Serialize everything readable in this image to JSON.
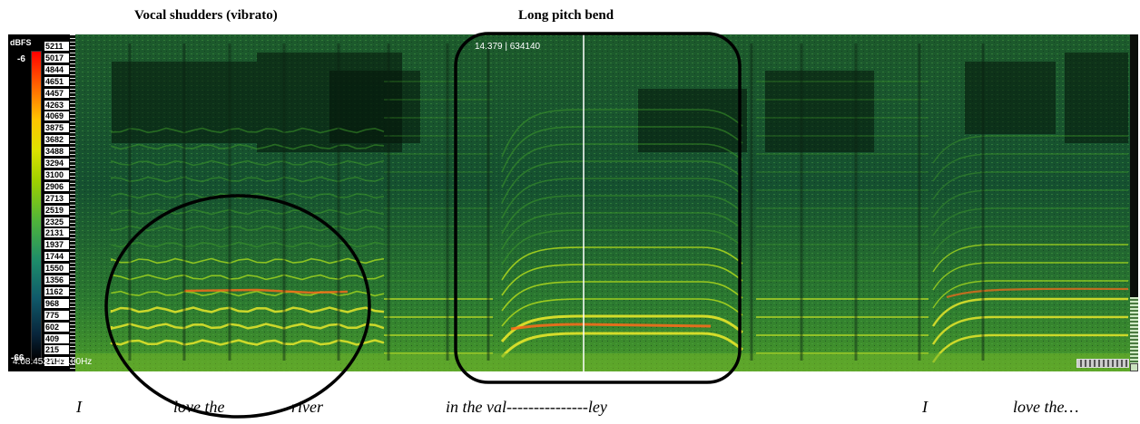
{
  "annotations": {
    "vibrato_title": "Vocal shudders (vibrato)",
    "bend_title": "Long pitch bend"
  },
  "level_meter": {
    "title": "dBFS",
    "max_label": "-6",
    "min_label": "-66"
  },
  "frequency_axis": {
    "labels": [
      "5211",
      "5017",
      "4844",
      "4651",
      "4457",
      "4263",
      "4069",
      "3875",
      "3682",
      "3488",
      "3294",
      "3100",
      "2906",
      "2713",
      "2519",
      "2325",
      "2131",
      "1937",
      "1744",
      "1550",
      "1356",
      "1162",
      "968",
      "775",
      "602",
      "409",
      "215",
      "21Hz"
    ]
  },
  "readouts": {
    "cursor": "14.379 | 634140",
    "position": "4:08.453 / 44100Hz"
  },
  "lyrics": {
    "w1": "I",
    "w2": "love the",
    "w3": "river",
    "w4": "in the val---------------ley",
    "w5": "I",
    "w6": "love the…"
  },
  "colors": {
    "background": "#0b1a0c",
    "spectrum_low": "#134a2a",
    "spectrum_mid": "#3e9a2a",
    "spectrum_high": "#e6e62a",
    "spectrum_peak": "#ff6a1a"
  }
}
